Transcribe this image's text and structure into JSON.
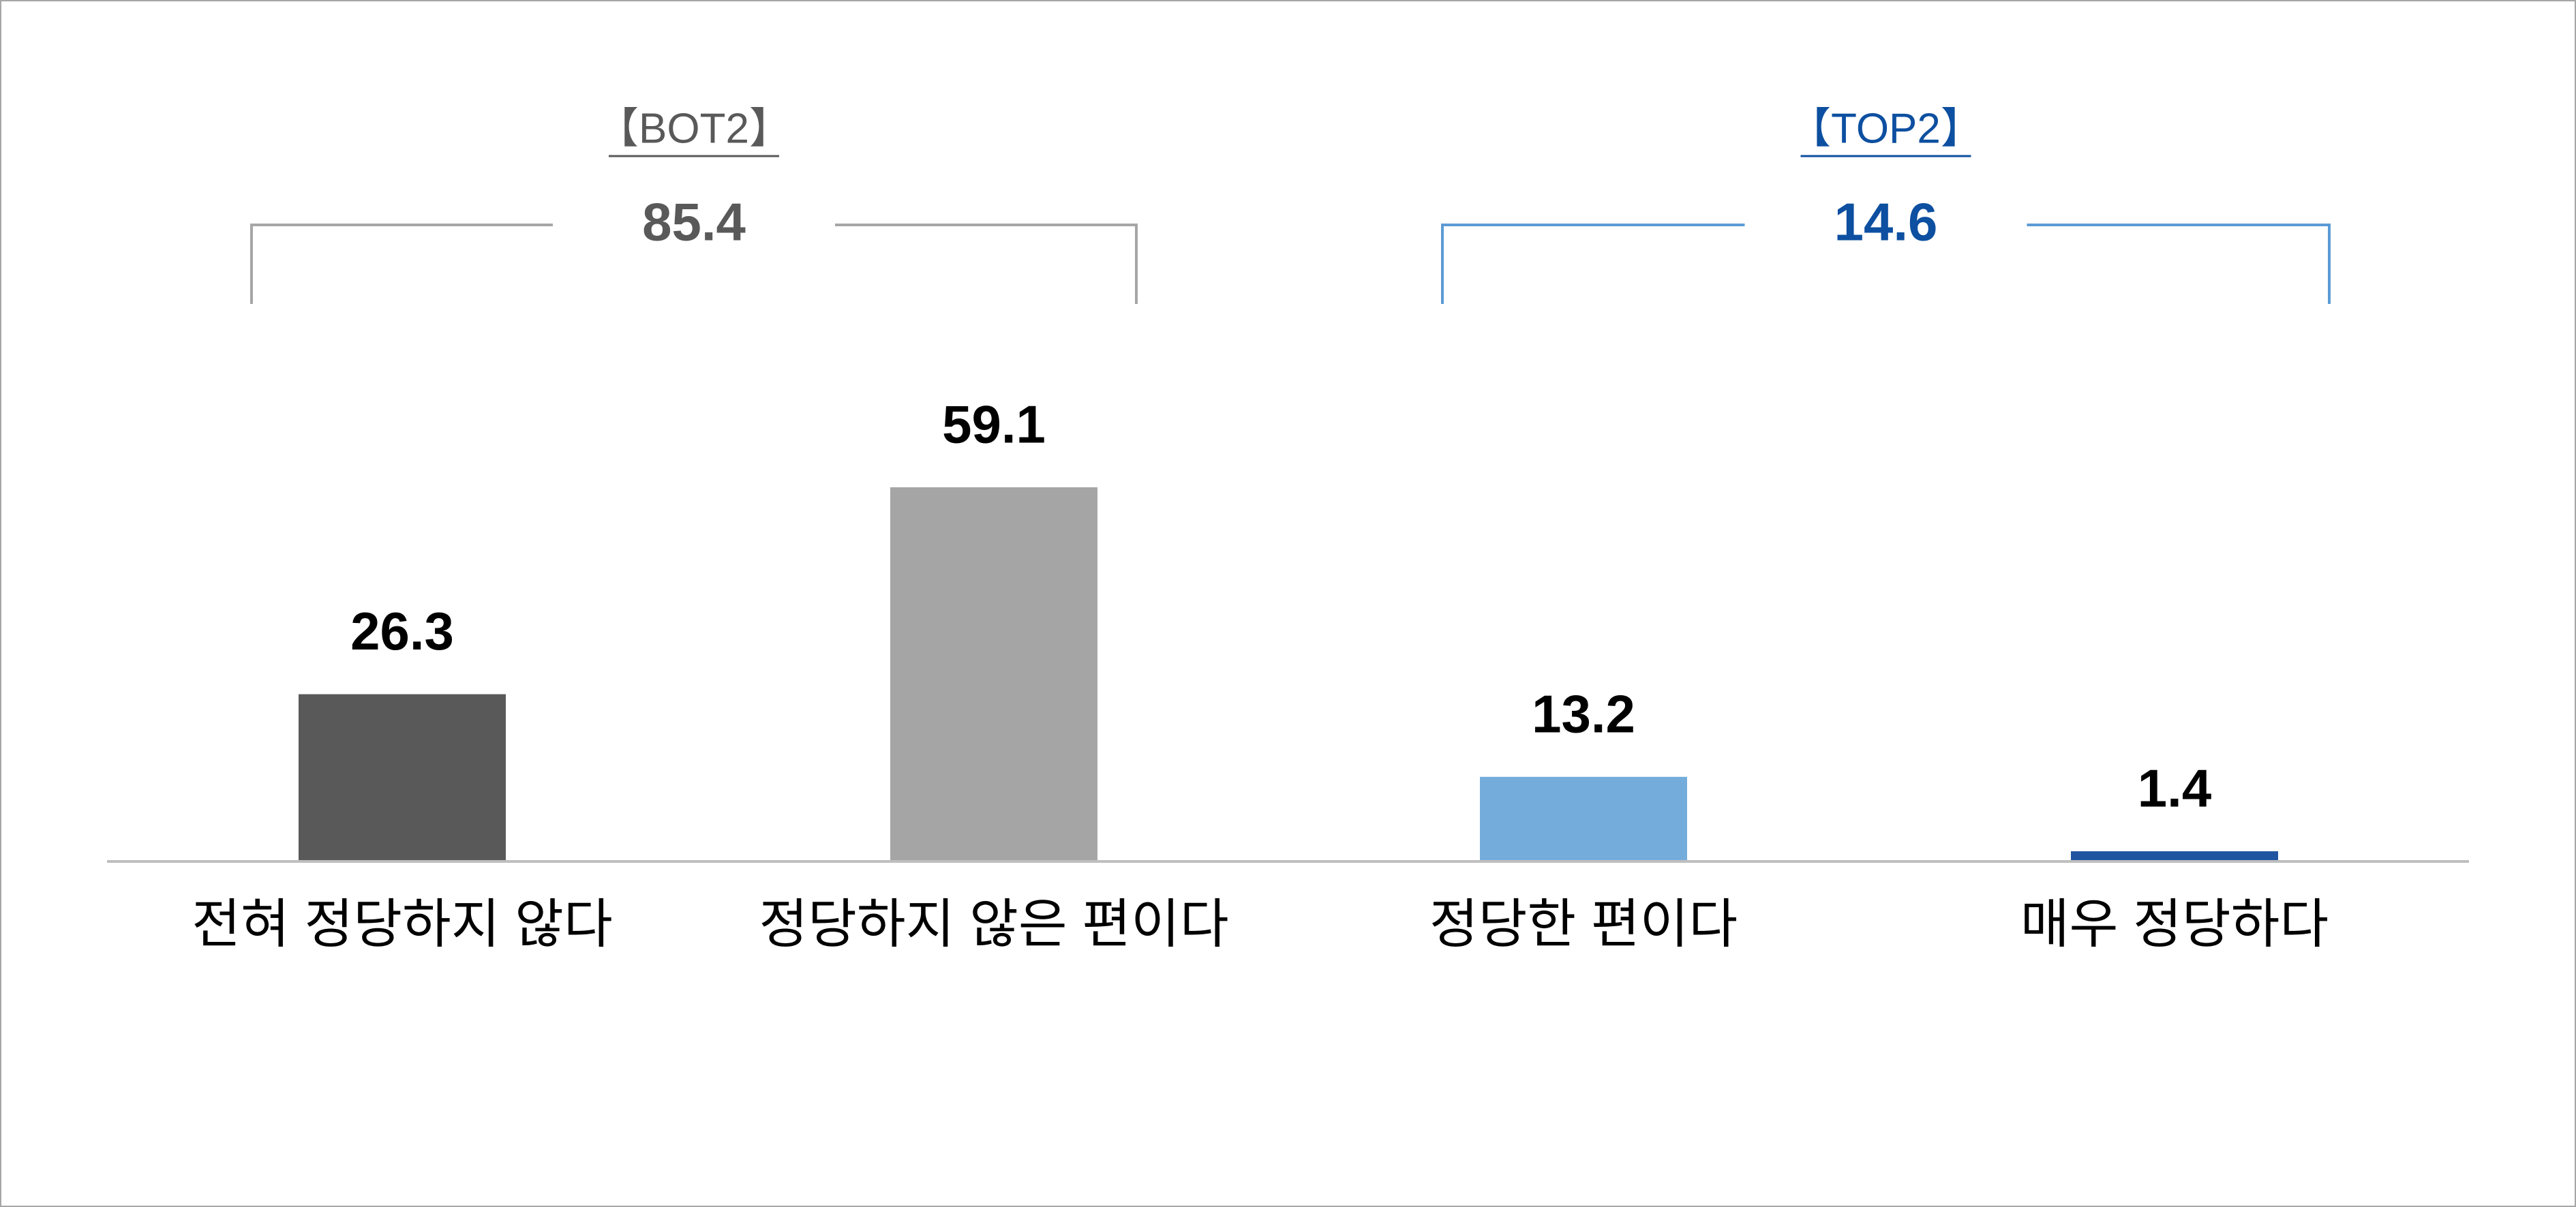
{
  "chart_data": {
    "type": "bar",
    "categories": [
      "전혀 정당하지 않다",
      "정당하지 않은 편이다",
      "정당한 편이다",
      "매우 정당하다"
    ],
    "values": [
      26.3,
      59.1,
      13.2,
      1.4
    ],
    "colors": [
      "#595959",
      "#a5a5a5",
      "#74acdb",
      "#1f55a0"
    ],
    "groups": [
      {
        "label": "【BOT2】",
        "value": 85.4,
        "color": "#595959",
        "line_color": "#a6a6a6"
      },
      {
        "label": "【TOP2】",
        "value": 14.6,
        "color": "#0d4fa0",
        "line_color": "#5b9bd5"
      }
    ]
  }
}
